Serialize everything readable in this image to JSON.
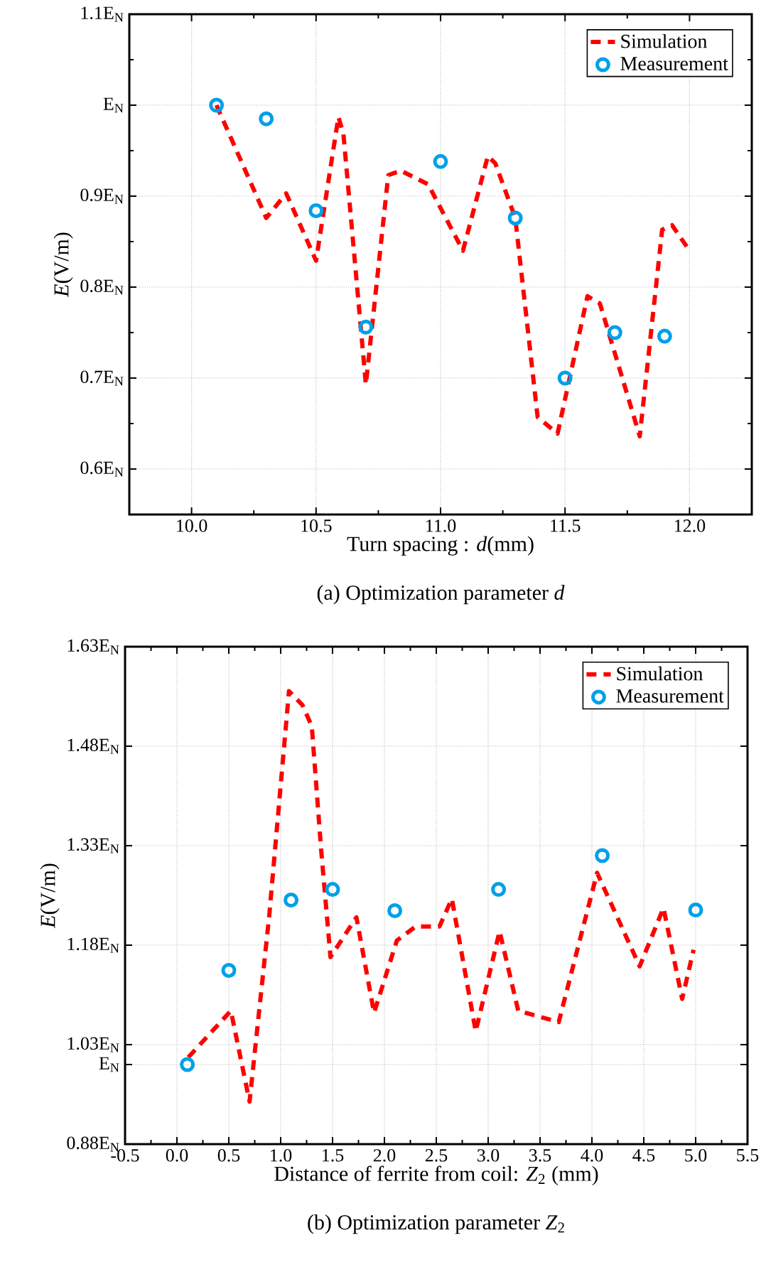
{
  "chart_data": [
    {
      "type": "line",
      "title": "(a) Optimization parameter *d*",
      "xlabel": "Turn spacing : *d*(mm)",
      "ylabel": "*E*(V/m)",
      "xlim": [
        9.75,
        12.25
      ],
      "ylim": [
        0.55,
        1.1
      ],
      "xticks": [
        {
          "value": 10,
          "label": "10.0"
        },
        {
          "value": 10.5,
          "label": "10.5"
        },
        {
          "value": 11,
          "label": "11.0"
        },
        {
          "value": 11.5,
          "label": "11.5"
        },
        {
          "value": 12,
          "label": "12.0"
        }
      ],
      "yticks": [
        {
          "value": 0.6,
          "label": "0.6E$_{N}$"
        },
        {
          "value": 0.7,
          "label": "0.7E$_{N}$"
        },
        {
          "value": 0.8,
          "label": "0.8E$_{N}$"
        },
        {
          "value": 0.9,
          "label": "0.9E$_{N}$"
        },
        {
          "value": 1.0,
          "label": "E$_{N}$"
        },
        {
          "value": 1.1,
          "label": "1.1E$_{N}$"
        }
      ],
      "grid": true,
      "legend": "top right",
      "series": [
        {
          "name": "Simulation",
          "type": "line",
          "line_style": "dashed",
          "marker": "none",
          "color": "#ff0000",
          "x": [
            10.1,
            10.3,
            10.38,
            10.5,
            10.58,
            10.59,
            10.61,
            10.7,
            10.79,
            10.84,
            10.95,
            11.09,
            11.19,
            11.22,
            11.3,
            11.39,
            11.47,
            11.59,
            11.64,
            11.8,
            11.89,
            11.93,
            12.0
          ],
          "values": [
            1.0,
            0.876,
            0.903,
            0.829,
            0.97,
            0.987,
            0.968,
            0.693,
            0.923,
            0.928,
            0.913,
            0.84,
            0.944,
            0.936,
            0.876,
            0.657,
            0.639,
            0.79,
            0.782,
            0.636,
            0.863,
            0.868,
            0.84
          ]
        },
        {
          "name": "Measurement",
          "type": "scatter",
          "marker": "circle",
          "color": "#00a0e9",
          "x": [
            10.1,
            10.3,
            10.5,
            10.7,
            11.0,
            11.3,
            11.5,
            11.7,
            11.9
          ],
          "values": [
            1.0,
            0.985,
            0.884,
            0.756,
            0.938,
            0.876,
            0.7,
            0.75,
            0.746
          ]
        }
      ]
    },
    {
      "type": "line",
      "title": "(b) Optimization parameter *Z*$_{2}$",
      "xlabel": "Distance of ferrite from coil: *Z*$_{2}$ (mm)",
      "ylabel": "*E*(V/m)",
      "xlim": [
        -0.5,
        5.5
      ],
      "ylim": [
        0.88,
        1.63
      ],
      "xticks": [
        {
          "value": -0.5,
          "label": "-0.5"
        },
        {
          "value": 0,
          "label": "0.0"
        },
        {
          "value": 0.5,
          "label": "0.5"
        },
        {
          "value": 1,
          "label": "1.0"
        },
        {
          "value": 1.5,
          "label": "1.5"
        },
        {
          "value": 2,
          "label": "2.0"
        },
        {
          "value": 2.5,
          "label": "2.5"
        },
        {
          "value": 3,
          "label": "3.0"
        },
        {
          "value": 3.5,
          "label": "3.5"
        },
        {
          "value": 4,
          "label": "4.0"
        },
        {
          "value": 4.5,
          "label": "4.5"
        },
        {
          "value": 5,
          "label": "5.0"
        },
        {
          "value": 5.5,
          "label": "5.5"
        }
      ],
      "yticks": [
        {
          "value": 0.88,
          "label": "0.88E$_{N}$"
        },
        {
          "value": 1.0,
          "label": "E$_{N}$"
        },
        {
          "value": 1.03,
          "label": "1.03E$_{N}$"
        },
        {
          "value": 1.18,
          "label": "1.18E$_{N}$"
        },
        {
          "value": 1.33,
          "label": "1.33E$_{N}$"
        },
        {
          "value": 1.48,
          "label": "1.48E$_{N}$"
        },
        {
          "value": 1.63,
          "label": "1.63E$_{N}$"
        }
      ],
      "grid": true,
      "legend": "top right",
      "series": [
        {
          "name": "Simulation",
          "type": "line",
          "line_style": "dashed",
          "marker": "none",
          "color": "#ff0000",
          "x": [
            0.11,
            0.52,
            0.7,
            0.89,
            1.08,
            1.21,
            1.3,
            1.39,
            1.48,
            1.73,
            1.9,
            2.12,
            2.3,
            2.53,
            2.65,
            2.88,
            3.11,
            3.29,
            3.68,
            4.05,
            4.46,
            4.69,
            4.87,
            4.98
          ],
          "values": [
            1.011,
            1.081,
            0.944,
            1.225,
            1.563,
            1.542,
            1.51,
            1.324,
            1.162,
            1.222,
            1.078,
            1.187,
            1.208,
            1.208,
            1.25,
            1.05,
            1.201,
            1.081,
            1.064,
            1.289,
            1.148,
            1.236,
            1.099,
            1.173
          ]
        },
        {
          "name": "Measurement",
          "type": "scatter",
          "marker": "circle",
          "color": "#00a0e9",
          "x": [
            0.1,
            0.5,
            1.1,
            1.5,
            2.1,
            3.1,
            4.1,
            5.0
          ],
          "values": [
            1.0,
            1.142,
            1.248,
            1.264,
            1.232,
            1.264,
            1.315,
            1.233
          ]
        }
      ]
    }
  ]
}
